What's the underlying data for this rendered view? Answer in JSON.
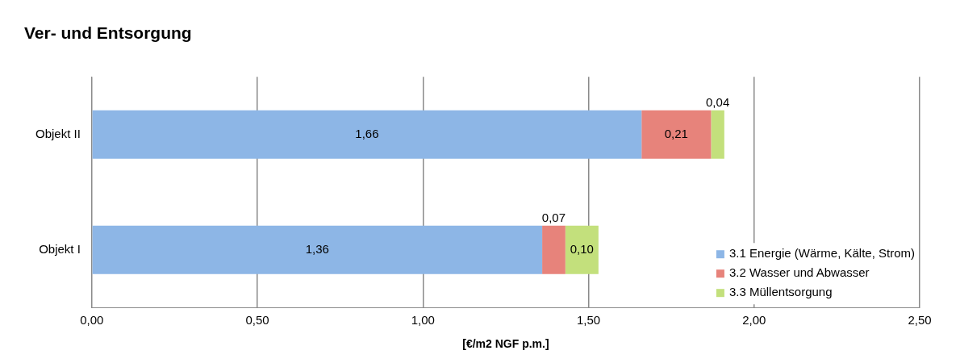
{
  "chart_data": {
    "type": "bar",
    "orientation": "horizontal",
    "stacked": true,
    "title": "Ver- und Entsorgung",
    "xlabel": "[€/m2 NGF p.m.]",
    "categories": [
      "Objekt II",
      "Objekt I"
    ],
    "series": [
      {
        "name": "3.1 Energie (Wärme, Kälte, Strom)",
        "color": "#8db6e6",
        "values": [
          1.66,
          1.36
        ],
        "value_labels": [
          "1,66",
          "1,36"
        ]
      },
      {
        "name": "3.2 Wasser und Abwasser",
        "color": "#e7837b",
        "values": [
          0.21,
          0.07
        ],
        "value_labels": [
          "0,21",
          "0,07"
        ]
      },
      {
        "name": "3.3 Müllentsorgung",
        "color": "#c3e07c",
        "values": [
          0.04,
          0.1
        ],
        "value_labels": [
          "0,04",
          "0,10"
        ]
      }
    ],
    "xlim": [
      0,
      2.5
    ],
    "xticks": [
      {
        "value": 0,
        "label": "0,00"
      },
      {
        "value": 0.5,
        "label": "0,50"
      },
      {
        "value": 1,
        "label": "1,00"
      },
      {
        "value": 1.5,
        "label": "1,50"
      },
      {
        "value": 2,
        "label": "2,00"
      },
      {
        "value": 2.5,
        "label": "2,50"
      }
    ],
    "grid": "x",
    "legend": "bottom right"
  }
}
